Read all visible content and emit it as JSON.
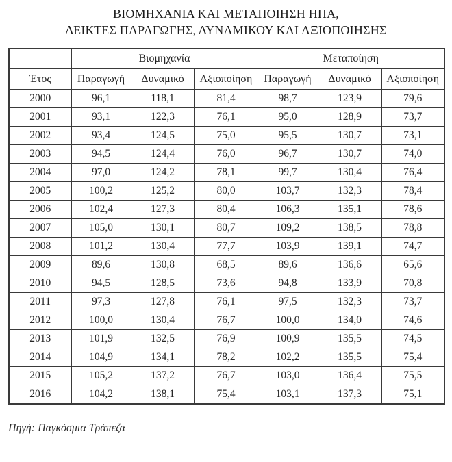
{
  "title": {
    "line1": "ΒΙΟΜΗΧΑΝΙΑ ΚΑΙ ΜΕΤΑΠΟΙΗΣΗ ΗΠΑ,",
    "line2": "ΔΕΙΚΤΕΣ ΠΑΡΑΓΩΓΗΣ, ΔΥΝΑΜΙΚΟΥ ΚΑΙ ΑΞΙΟΠΟΙΗΣΗΣ"
  },
  "table": {
    "group_headers": [
      "Βιομηχανία",
      "Μεταποίηση"
    ],
    "col_headers": [
      "Έτος",
      "Παραγωγή",
      "Δυναμικό",
      "Αξιοποίηση",
      "Παραγωγή",
      "Δυναμικό",
      "Αξιοποίηση"
    ],
    "rows": [
      [
        "2000",
        "96,1",
        "118,1",
        "81,4",
        "98,7",
        "123,9",
        "79,6"
      ],
      [
        "2001",
        "93,1",
        "122,3",
        "76,1",
        "95,0",
        "128,9",
        "73,7"
      ],
      [
        "2002",
        "93,4",
        "124,5",
        "75,0",
        "95,5",
        "130,7",
        "73,1"
      ],
      [
        "2003",
        "94,5",
        "124,4",
        "76,0",
        "96,7",
        "130,7",
        "74,0"
      ],
      [
        "2004",
        "97,0",
        "124,2",
        "78,1",
        "99,7",
        "130,4",
        "76,4"
      ],
      [
        "2005",
        "100,2",
        "125,2",
        "80,0",
        "103,7",
        "132,3",
        "78,4"
      ],
      [
        "2006",
        "102,4",
        "127,3",
        "80,4",
        "106,3",
        "135,1",
        "78,6"
      ],
      [
        "2007",
        "105,0",
        "130,1",
        "80,7",
        "109,2",
        "138,5",
        "78,8"
      ],
      [
        "2008",
        "101,2",
        "130,4",
        "77,7",
        "103,9",
        "139,1",
        "74,7"
      ],
      [
        "2009",
        "89,6",
        "130,8",
        "68,5",
        "89,6",
        "136,6",
        "65,6"
      ],
      [
        "2010",
        "94,5",
        "128,5",
        "73,6",
        "94,8",
        "133,9",
        "70,8"
      ],
      [
        "2011",
        "97,3",
        "127,8",
        "76,1",
        "97,5",
        "132,3",
        "73,7"
      ],
      [
        "2012",
        "100,0",
        "130,4",
        "76,7",
        "100,0",
        "134,0",
        "74,6"
      ],
      [
        "2013",
        "101,9",
        "132,5",
        "76,9",
        "100,9",
        "135,5",
        "74,5"
      ],
      [
        "2014",
        "104,9",
        "134,1",
        "78,2",
        "102,2",
        "135,5",
        "75,4"
      ],
      [
        "2015",
        "105,2",
        "137,2",
        "76,7",
        "103,0",
        "136,4",
        "75,5"
      ],
      [
        "2016",
        "104,2",
        "138,1",
        "75,4",
        "103,1",
        "137,3",
        "75,1"
      ]
    ]
  },
  "source": "Πηγή: Παγκόσμια Τράπεζα"
}
